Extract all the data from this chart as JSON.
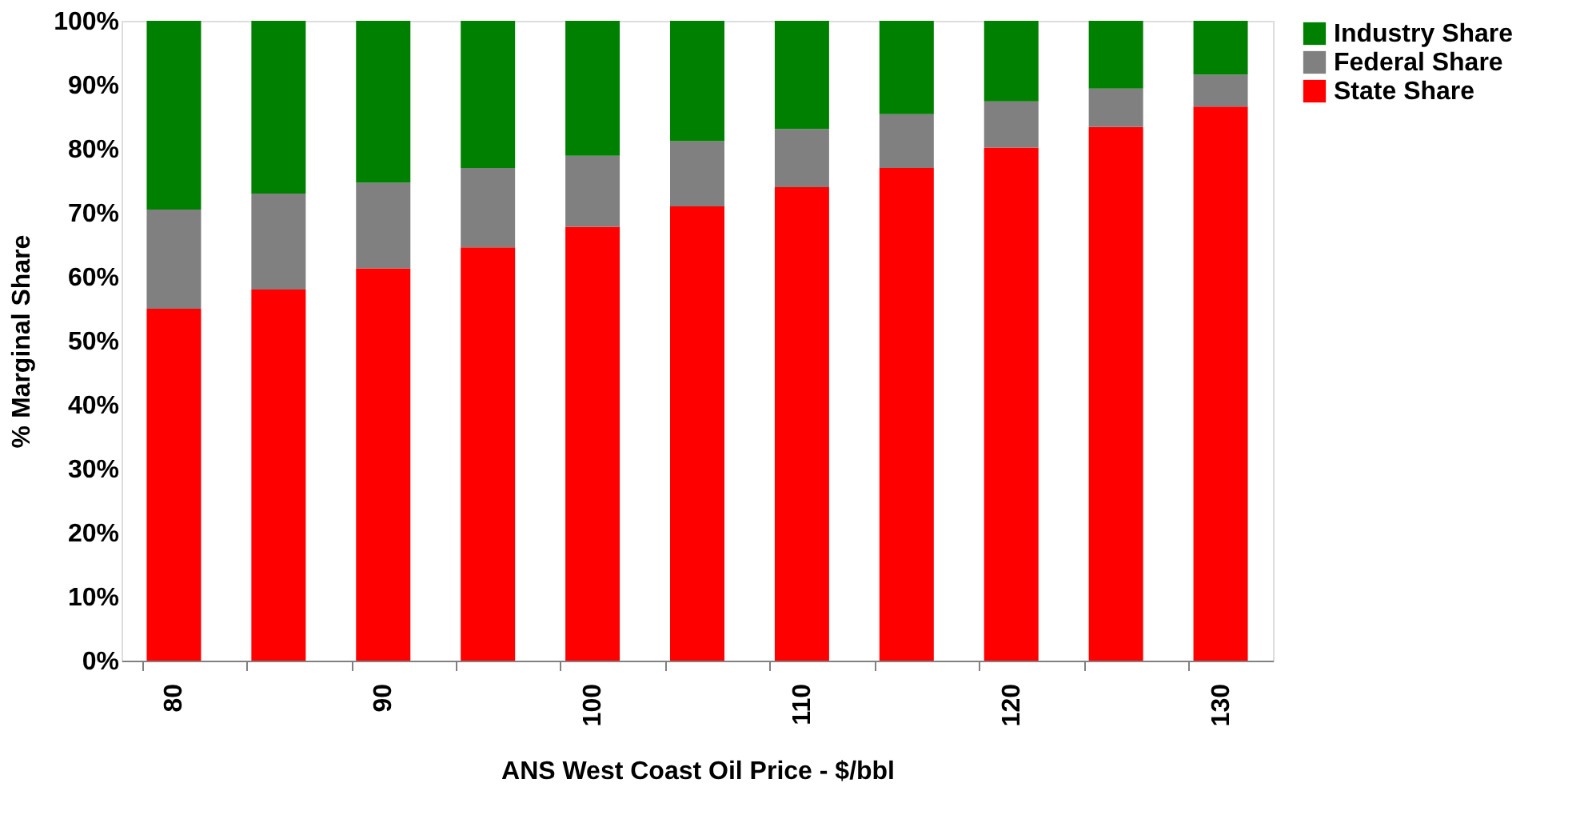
{
  "chart_data": {
    "type": "bar",
    "stacked": true,
    "xlabel": "ANS West Coast Oil Price - $/bbl",
    "ylabel": "% Marginal Share",
    "categories": [
      "80",
      null,
      "90",
      null,
      "100",
      null,
      "110",
      null,
      "120",
      null,
      "130"
    ],
    "series": [
      {
        "name": "State Share",
        "color": "#ff0000",
        "values": [
          55,
          58,
          61.3,
          64.6,
          67.8,
          71,
          74,
          77,
          80.2,
          83.4,
          86.6
        ]
      },
      {
        "name": "Federal Share",
        "color": "#808080",
        "values": [
          15.5,
          15,
          13.4,
          12.4,
          11.1,
          10.2,
          9.1,
          8.4,
          7.2,
          6,
          5
        ]
      },
      {
        "name": "Industry Share",
        "color": "#008000",
        "values": [
          29.5,
          27,
          25.3,
          23,
          21.1,
          18.8,
          16.9,
          14.6,
          12.6,
          10.6,
          8.4
        ]
      }
    ],
    "ylim": [
      0,
      100
    ],
    "yticks": [
      {
        "value": 0,
        "label": "0%"
      },
      {
        "value": 10,
        "label": "10%"
      },
      {
        "value": 20,
        "label": "20%"
      },
      {
        "value": 30,
        "label": "30%"
      },
      {
        "value": 40,
        "label": "40%"
      },
      {
        "value": 50,
        "label": "50%"
      },
      {
        "value": 60,
        "label": "60%"
      },
      {
        "value": 70,
        "label": "70%"
      },
      {
        "value": 80,
        "label": "80%"
      },
      {
        "value": 90,
        "label": "90%"
      },
      {
        "value": 100,
        "label": "100%"
      }
    ],
    "grid": false,
    "legend": "right"
  }
}
